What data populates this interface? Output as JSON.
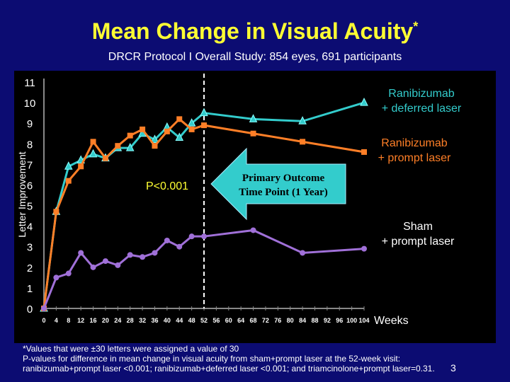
{
  "title": "Mean Change in Visual Acuity",
  "title_mark": "*",
  "subtitle": "DRCR Protocol I Overall Study: 854 eyes, 691 participants",
  "chart_data": {
    "type": "line",
    "ylabel": "Letter Improvement",
    "xlabel": "Weeks",
    "ylim": [
      0,
      11
    ],
    "xlim": [
      0,
      104
    ],
    "yticks": [
      0,
      1,
      2,
      3,
      4,
      5,
      6,
      7,
      8,
      9,
      10,
      11
    ],
    "xticks": [
      0,
      4,
      8,
      12,
      16,
      20,
      24,
      28,
      32,
      36,
      40,
      44,
      48,
      52,
      56,
      60,
      64,
      68,
      72,
      76,
      80,
      84,
      88,
      92,
      96,
      100,
      104
    ],
    "series": [
      {
        "name": "Ranibizumab + deferred laser",
        "label_lines": [
          "Ranibizumab",
          "+ deferred laser"
        ],
        "color": "#33cccc",
        "marker": "triangle",
        "x": [
          0,
          4,
          8,
          12,
          16,
          20,
          24,
          28,
          32,
          36,
          40,
          44,
          48,
          52,
          68,
          84,
          104
        ],
        "y": [
          0,
          4.7,
          6.9,
          7.2,
          7.5,
          7.3,
          7.8,
          7.8,
          8.5,
          8.2,
          8.8,
          8.3,
          9.0,
          9.5,
          9.2,
          9.1,
          10.0
        ]
      },
      {
        "name": "Ranibizumab + prompt laser",
        "label_lines": [
          "Ranibizumab",
          "+ prompt laser"
        ],
        "color": "#ff7f27",
        "marker": "square",
        "x": [
          0,
          4,
          8,
          12,
          16,
          20,
          24,
          28,
          32,
          36,
          40,
          44,
          48,
          52,
          68,
          84,
          104
        ],
        "y": [
          0,
          4.7,
          6.2,
          6.9,
          8.1,
          7.3,
          7.9,
          8.4,
          8.7,
          7.9,
          8.6,
          9.2,
          8.7,
          8.9,
          8.5,
          8.1,
          7.6
        ]
      },
      {
        "name": "Sham + prompt laser",
        "label_lines": [
          "Sham",
          "+ prompt laser"
        ],
        "color": "#a070d8",
        "marker": "circle",
        "x": [
          0,
          4,
          8,
          12,
          16,
          20,
          24,
          28,
          32,
          36,
          40,
          44,
          48,
          52,
          68,
          84,
          104
        ],
        "y": [
          0,
          1.5,
          1.7,
          2.7,
          2.0,
          2.3,
          2.1,
          2.6,
          2.5,
          2.7,
          3.3,
          3.0,
          3.5,
          3.5,
          3.8,
          2.7,
          2.9
        ]
      }
    ],
    "annotations": {
      "pvalue": "P<0.001",
      "primary_outcome": [
        "Primary Outcome",
        "Time Point (1 Year)"
      ],
      "primary_outcome_week": 52
    }
  },
  "footnotes": [
    "*Values that were ±30 letters were assigned a value of 30",
    "P-values for difference in mean change in visual  acuity  from sham+prompt laser at the 52-week visit:",
    "ranibizumab+prompt laser <0.001; ranibizumab+deferred laser <0.001; and triamcinolone+prompt laser=0.31."
  ],
  "page_number": "3"
}
